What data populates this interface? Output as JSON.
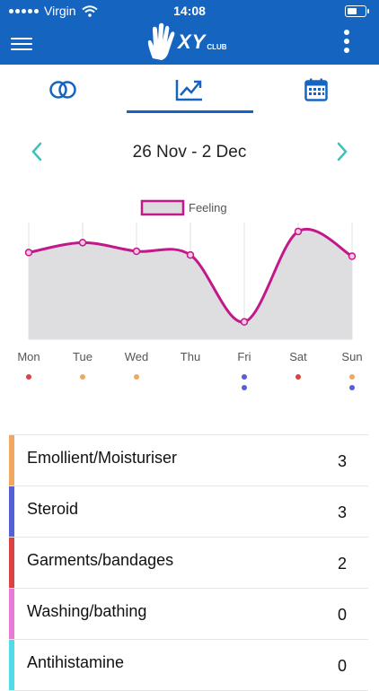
{
  "status": {
    "carrier": "Virgin",
    "time": "14:08"
  },
  "app": {
    "logo": "XY",
    "logo_sub": "CLUB"
  },
  "tabs": [
    {
      "icon": "toggle-circles-icon"
    },
    {
      "icon": "trend-chart-icon",
      "active": true
    },
    {
      "icon": "calendar-icon"
    }
  ],
  "date_nav": {
    "range": "26 Nov - 2 Dec"
  },
  "chart_data": {
    "type": "area",
    "legend": "Feeling",
    "categories": [
      "Mon",
      "Tue",
      "Wed",
      "Thu",
      "Fri",
      "Sat",
      "Sun"
    ],
    "values": [
      0.7,
      0.78,
      0.71,
      0.68,
      0.14,
      0.87,
      0.67
    ],
    "ylim": [
      0,
      1
    ],
    "line_color": "#c2188a",
    "fill_color": "#dcdcdf",
    "dots": [
      [
        "#d94343"
      ],
      [
        "#f0a860"
      ],
      [
        "#f0a860"
      ],
      [],
      [
        "#5560d8",
        "#5560d8"
      ],
      [
        "#d94343"
      ],
      [
        "#f0a860",
        "#5560d8"
      ]
    ]
  },
  "treatments": [
    {
      "label": "Emollient/Moisturiser",
      "count": "3",
      "color": "#f0a860"
    },
    {
      "label": "Steroid",
      "count": "3",
      "color": "#5560d8"
    },
    {
      "label": "Garments/bandages",
      "count": "2",
      "color": "#d94343"
    },
    {
      "label": "Washing/bathing",
      "count": "0",
      "color": "#e87ad8"
    },
    {
      "label": "Antihistamine",
      "count": "0",
      "color": "#4fdbe8"
    }
  ]
}
